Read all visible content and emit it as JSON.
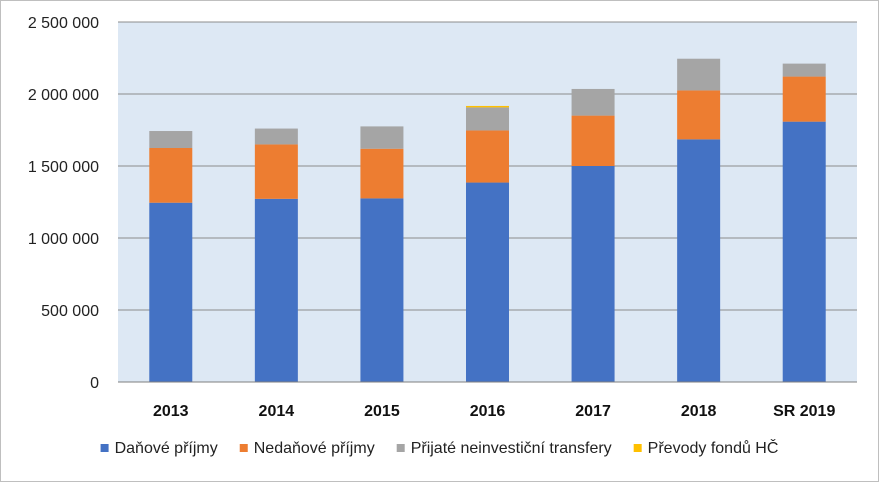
{
  "chart_data": {
    "type": "bar",
    "stacked": true,
    "categories": [
      "2013",
      "2014",
      "2015",
      "2016",
      "2017",
      "2018",
      "SR 2019"
    ],
    "series": [
      {
        "name": "Daňové příjmy",
        "color": "#4472c4",
        "values": [
          1245000,
          1272000,
          1275000,
          1385000,
          1500000,
          1685000,
          1808000
        ]
      },
      {
        "name": "Nedaňové příjmy",
        "color": "#ed7d31",
        "values": [
          380000,
          378000,
          345000,
          362000,
          350000,
          340000,
          313000
        ]
      },
      {
        "name": "Přijaté neinvestiční transfery",
        "color": "#a5a5a5",
        "values": [
          118000,
          110000,
          155000,
          160000,
          185000,
          220000,
          90000
        ]
      },
      {
        "name": "Převody fondů HČ",
        "color": "#ffc000",
        "values": [
          0,
          0,
          0,
          10000,
          0,
          0,
          0
        ]
      }
    ],
    "ylim": [
      0,
      2500000
    ],
    "yticks": [
      0,
      500000,
      1000000,
      1500000,
      2000000,
      2500000
    ],
    "ytick_labels": [
      "0",
      "500 000",
      "1 000 000",
      "1 500 000",
      "2 000 000",
      "2 500 000"
    ],
    "grid": true,
    "plot_background": "#dde8f4",
    "legend_position": "bottom"
  }
}
